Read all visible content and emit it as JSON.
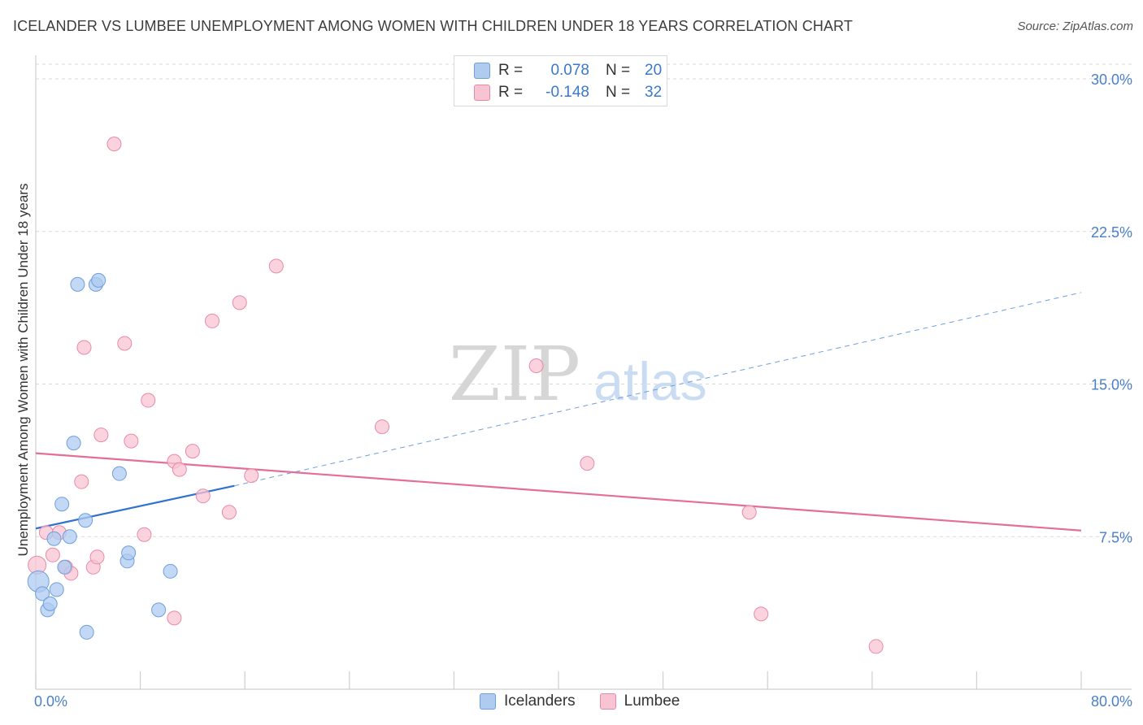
{
  "title": "ICELANDER VS LUMBEE UNEMPLOYMENT AMONG WOMEN WITH CHILDREN UNDER 18 YEARS CORRELATION CHART",
  "source": "Source: ZipAtlas.com",
  "watermark": {
    "zip": "ZIP",
    "atlas": "atlas"
  },
  "legend": {
    "rows": [
      {
        "r_label": "R =",
        "r_value": "0.078",
        "n_label": "N =",
        "n_value": "20",
        "color": "#aecbf0",
        "border": "#6f9fdc"
      },
      {
        "r_label": "R =",
        "r_value": "-0.148",
        "n_label": "N =",
        "n_value": "32",
        "color": "#f8c4d3",
        "border": "#e88aa6"
      }
    ]
  },
  "bottom_legend": [
    {
      "label": "Icelanders",
      "color": "#aecbf0",
      "border": "#6f9fdc"
    },
    {
      "label": "Lumbee",
      "color": "#f8c4d3",
      "border": "#e88aa6"
    }
  ],
  "chart_data": {
    "type": "scatter",
    "ylabel": "Unemployment Among Women with Children Under 18 years",
    "xlabel": "",
    "xlim": [
      0,
      80
    ],
    "ylim": [
      0,
      31
    ],
    "x_tick_labels": [
      {
        "value": 0,
        "label": "0.0%"
      },
      {
        "value": 80,
        "label": "80.0%"
      }
    ],
    "y_tick_labels": [
      {
        "value": 7.5,
        "label": "7.5%"
      },
      {
        "value": 15.0,
        "label": "15.0%"
      },
      {
        "value": 22.5,
        "label": "22.5%"
      },
      {
        "value": 30.0,
        "label": "30.0%"
      }
    ],
    "grid": true,
    "series": [
      {
        "name": "Icelanders",
        "color": "#6f9fdc",
        "fill": "#aecbf0",
        "points": [
          [
            0.2,
            5.3
          ],
          [
            0.5,
            4.7
          ],
          [
            0.9,
            3.9
          ],
          [
            1.1,
            4.2
          ],
          [
            1.4,
            7.4
          ],
          [
            1.6,
            4.9
          ],
          [
            2.0,
            9.1
          ],
          [
            2.2,
            6.0
          ],
          [
            2.6,
            7.5
          ],
          [
            2.9,
            12.1
          ],
          [
            3.2,
            19.9
          ],
          [
            3.8,
            8.3
          ],
          [
            3.9,
            2.8
          ],
          [
            4.6,
            19.9
          ],
          [
            4.8,
            20.1
          ],
          [
            6.4,
            10.6
          ],
          [
            7.0,
            6.3
          ],
          [
            7.1,
            6.7
          ],
          [
            9.4,
            3.9
          ],
          [
            10.3,
            5.8
          ]
        ],
        "trend_solid": [
          [
            0,
            7.9
          ],
          [
            15.2,
            10.0
          ]
        ],
        "trend_dashed": [
          [
            15.2,
            10.0
          ],
          [
            80,
            19.5
          ]
        ]
      },
      {
        "name": "Lumbee",
        "color": "#e88aa6",
        "fill": "#f8c4d3",
        "points": [
          [
            0.1,
            6.1
          ],
          [
            0.8,
            7.7
          ],
          [
            1.3,
            6.6
          ],
          [
            1.8,
            7.7
          ],
          [
            2.3,
            6.0
          ],
          [
            2.7,
            5.7
          ],
          [
            3.5,
            10.2
          ],
          [
            3.7,
            16.8
          ],
          [
            4.4,
            6.0
          ],
          [
            4.7,
            6.5
          ],
          [
            5.0,
            12.5
          ],
          [
            6.0,
            26.8
          ],
          [
            6.8,
            17.0
          ],
          [
            7.3,
            12.2
          ],
          [
            8.3,
            7.6
          ],
          [
            8.6,
            14.2
          ],
          [
            10.6,
            11.2
          ],
          [
            11.0,
            10.8
          ],
          [
            12.0,
            11.7
          ],
          [
            12.8,
            9.5
          ],
          [
            13.5,
            18.1
          ],
          [
            14.8,
            8.7
          ],
          [
            15.6,
            19.0
          ],
          [
            16.5,
            10.5
          ],
          [
            18.4,
            20.8
          ],
          [
            10.6,
            3.5
          ],
          [
            26.5,
            12.9
          ],
          [
            38.3,
            15.9
          ],
          [
            42.2,
            11.1
          ],
          [
            54.6,
            8.7
          ],
          [
            55.5,
            3.7
          ],
          [
            64.3,
            2.1
          ]
        ],
        "trend_solid": [
          [
            0,
            11.6
          ],
          [
            80,
            7.8
          ]
        ]
      }
    ]
  }
}
